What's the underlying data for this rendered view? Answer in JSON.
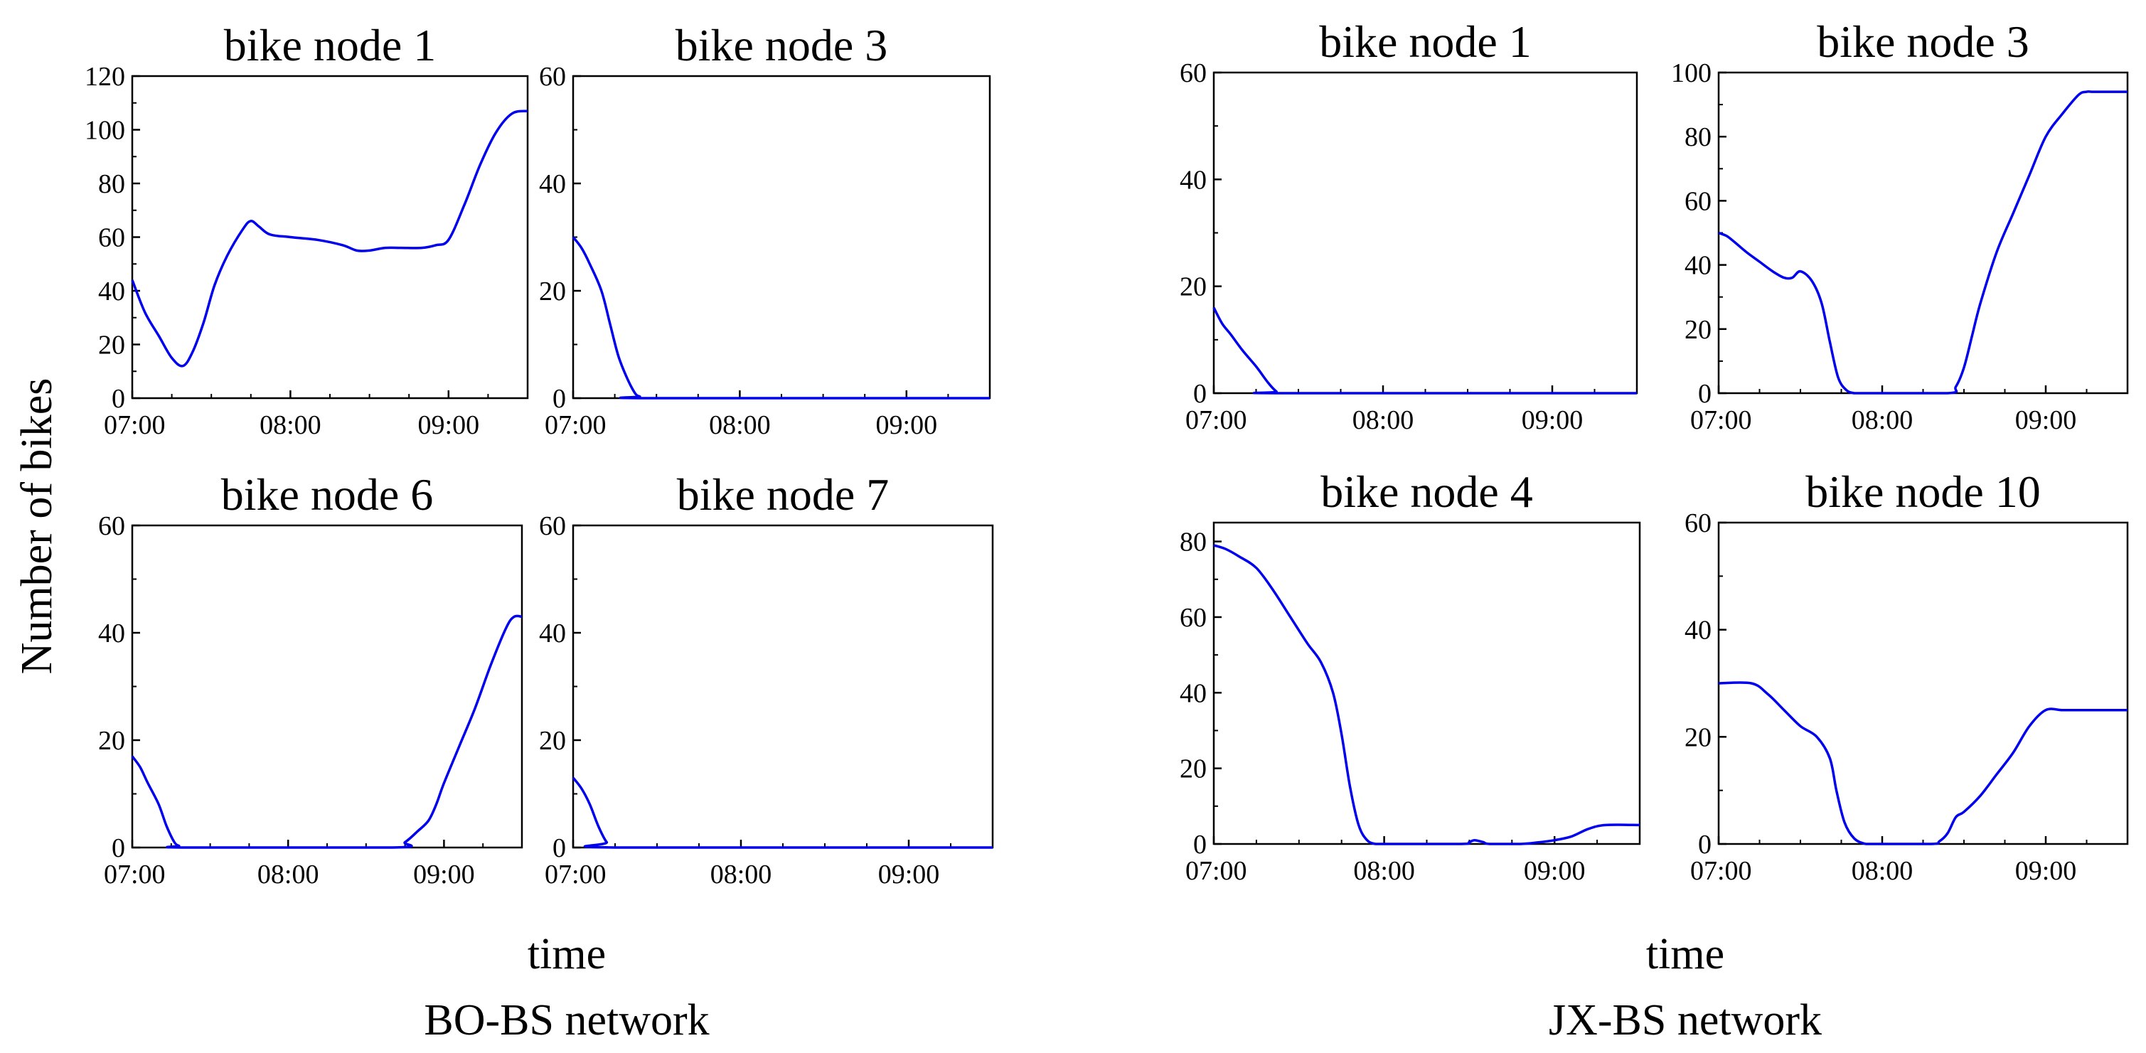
{
  "figure": {
    "ylabel": "Number of bikes",
    "groups": [
      {
        "xlabel": "time",
        "caption": "BO-BS network"
      },
      {
        "xlabel": "time",
        "caption": "JX-BS network"
      }
    ],
    "line_color": "#0000ee"
  },
  "chart_data": [
    {
      "type": "line",
      "network": "BO-BS network",
      "title": "bike node 1",
      "xlabel": "time",
      "ylabel": "Number of bikes",
      "x_unit": "hours",
      "xlim": [
        7.0,
        9.5
      ],
      "ylim": [
        0,
        120
      ],
      "xticks": [
        7,
        8,
        9
      ],
      "xtick_labels": [
        "07:00",
        "08:00",
        "09:00"
      ],
      "yticks": [
        0,
        20,
        40,
        60,
        80,
        100,
        120
      ],
      "series": [
        {
          "color": "#0000ee",
          "x": [
            7.0,
            7.08,
            7.17,
            7.25,
            7.32,
            7.38,
            7.45,
            7.52,
            7.6,
            7.7,
            7.75,
            7.8,
            7.87,
            8.0,
            8.17,
            8.33,
            8.42,
            8.5,
            8.6,
            8.7,
            8.83,
            8.92,
            9.0,
            9.1,
            9.2,
            9.3,
            9.4,
            9.5
          ],
          "y": [
            44,
            32,
            23,
            15,
            12,
            17,
            28,
            42,
            53,
            63,
            66,
            64,
            61,
            60,
            59,
            57,
            55,
            55,
            56,
            56,
            56,
            57,
            59,
            72,
            87,
            99,
            106,
            107
          ]
        }
      ]
    },
    {
      "type": "line",
      "network": "BO-BS network",
      "title": "bike node 3",
      "xlabel": "time",
      "ylabel": "Number of bikes",
      "x_unit": "hours",
      "xlim": [
        7.0,
        9.5
      ],
      "ylim": [
        0,
        60
      ],
      "xticks": [
        7,
        8,
        9
      ],
      "xtick_labels": [
        "07:00",
        "08:00",
        "09:00"
      ],
      "yticks": [
        0,
        20,
        40,
        60
      ],
      "series": [
        {
          "color": "#0000ee",
          "x": [
            7.0,
            7.05,
            7.1,
            7.17,
            7.22,
            7.27,
            7.32,
            7.37,
            7.4,
            7.45,
            9.5
          ],
          "y": [
            30,
            28,
            25,
            20,
            14,
            8,
            4,
            1,
            0.3,
            0,
            0
          ]
        }
      ]
    },
    {
      "type": "line",
      "network": "BO-BS network",
      "title": "bike node 6",
      "xlabel": "time",
      "ylabel": "Number of bikes",
      "x_unit": "hours",
      "xlim": [
        7.0,
        9.5
      ],
      "ylim": [
        0,
        60
      ],
      "xticks": [
        7,
        8,
        9
      ],
      "xtick_labels": [
        "07:00",
        "08:00",
        "09:00"
      ],
      "yticks": [
        0,
        20,
        40,
        60
      ],
      "series": [
        {
          "color": "#0000ee",
          "x": [
            7.0,
            7.05,
            7.1,
            7.17,
            7.22,
            7.27,
            7.3,
            7.33,
            8.67,
            8.75,
            8.83,
            8.9,
            8.95,
            9.0,
            9.1,
            9.2,
            9.3,
            9.4,
            9.45,
            9.5
          ],
          "y": [
            17,
            15,
            12,
            8,
            4,
            1,
            0.3,
            0,
            0,
            1,
            3,
            5,
            8,
            12,
            19,
            26,
            34,
            41,
            43,
            43
          ]
        }
      ]
    },
    {
      "type": "line",
      "network": "BO-BS network",
      "title": "bike node 7",
      "xlabel": "time",
      "ylabel": "Number of bikes",
      "x_unit": "hours",
      "xlim": [
        7.0,
        9.5
      ],
      "ylim": [
        0,
        60
      ],
      "xticks": [
        7,
        8,
        9
      ],
      "xtick_labels": [
        "07:00",
        "08:00",
        "09:00"
      ],
      "yticks": [
        0,
        20,
        40,
        60
      ],
      "series": [
        {
          "color": "#0000ee",
          "x": [
            7.0,
            7.05,
            7.1,
            7.15,
            7.2,
            7.25,
            9.5
          ],
          "y": [
            13,
            11,
            8,
            4,
            1,
            0,
            0
          ]
        }
      ]
    },
    {
      "type": "line",
      "network": "JX-BS network",
      "title": "bike node 1",
      "xlabel": "time",
      "ylabel": "Number of bikes",
      "x_unit": "hours",
      "xlim": [
        7.0,
        9.5
      ],
      "ylim": [
        0,
        60
      ],
      "xticks": [
        7,
        8,
        9
      ],
      "xtick_labels": [
        "07:00",
        "08:00",
        "09:00"
      ],
      "yticks": [
        0,
        20,
        40,
        60
      ],
      "series": [
        {
          "color": "#0000ee",
          "x": [
            7.0,
            7.05,
            7.1,
            7.17,
            7.25,
            7.32,
            7.37,
            7.4,
            9.5
          ],
          "y": [
            16,
            13,
            11,
            8,
            5,
            2,
            0.3,
            0,
            0
          ]
        }
      ]
    },
    {
      "type": "line",
      "network": "JX-BS network",
      "title": "bike node 3",
      "xlabel": "time",
      "ylabel": "Number of bikes",
      "x_unit": "hours",
      "xlim": [
        7.0,
        9.5
      ],
      "ylim": [
        0,
        100
      ],
      "xticks": [
        7,
        8,
        9
      ],
      "xtick_labels": [
        "07:00",
        "08:00",
        "09:00"
      ],
      "yticks": [
        0,
        20,
        40,
        60,
        80,
        100
      ],
      "series": [
        {
          "color": "#0000ee",
          "x": [
            7.0,
            7.05,
            7.1,
            7.17,
            7.25,
            7.33,
            7.4,
            7.45,
            7.5,
            7.57,
            7.63,
            7.68,
            7.73,
            7.78,
            7.83,
            7.88,
            8.4,
            8.45,
            8.5,
            8.55,
            8.6,
            8.7,
            8.8,
            8.9,
            9.0,
            9.1,
            9.2,
            9.25,
            9.3,
            9.5
          ],
          "y": [
            50,
            49,
            47,
            44,
            41,
            38,
            36,
            36,
            38,
            35,
            28,
            16,
            5,
            1,
            0,
            0,
            0,
            2,
            8,
            18,
            28,
            44,
            56,
            68,
            80,
            87,
            93,
            94,
            94,
            94
          ]
        }
      ]
    },
    {
      "type": "line",
      "network": "JX-BS network",
      "title": "bike node 4",
      "xlabel": "time",
      "ylabel": "Number of bikes",
      "x_unit": "hours",
      "xlim": [
        7.0,
        9.5
      ],
      "ylim": [
        0,
        85
      ],
      "xticks": [
        7,
        8,
        9
      ],
      "xtick_labels": [
        "07:00",
        "08:00",
        "09:00"
      ],
      "yticks": [
        0,
        20,
        40,
        60,
        80
      ],
      "series": [
        {
          "color": "#0000ee",
          "x": [
            7.0,
            7.07,
            7.15,
            7.25,
            7.35,
            7.45,
            7.55,
            7.63,
            7.7,
            7.75,
            7.8,
            7.85,
            7.9,
            7.95,
            8.0,
            8.45,
            8.5,
            8.53,
            8.58,
            8.62,
            8.8,
            8.9,
            9.0,
            9.1,
            9.2,
            9.3,
            9.5
          ],
          "y": [
            79,
            78,
            76,
            73,
            67,
            60,
            53,
            48,
            40,
            29,
            15,
            5,
            1,
            0,
            0,
            0,
            0.5,
            1,
            0.5,
            0,
            0,
            0.4,
            1,
            2,
            4,
            5,
            5
          ]
        }
      ]
    },
    {
      "type": "line",
      "network": "JX-BS network",
      "title": "bike node 10",
      "xlabel": "time",
      "ylabel": "Number of bikes",
      "x_unit": "hours",
      "xlim": [
        7.0,
        9.5
      ],
      "ylim": [
        0,
        60
      ],
      "xticks": [
        7,
        8,
        9
      ],
      "xtick_labels": [
        "07:00",
        "08:00",
        "09:00"
      ],
      "yticks": [
        0,
        20,
        40,
        60
      ],
      "series": [
        {
          "color": "#0000ee",
          "x": [
            7.0,
            7.2,
            7.3,
            7.4,
            7.5,
            7.6,
            7.68,
            7.72,
            7.77,
            7.83,
            7.9,
            7.95,
            8.3,
            8.35,
            8.4,
            8.45,
            8.5,
            8.6,
            8.7,
            8.8,
            8.9,
            9.0,
            9.1,
            9.2,
            9.5
          ],
          "y": [
            30,
            30,
            28,
            25,
            22,
            20,
            16,
            10,
            4,
            1,
            0,
            0,
            0,
            0.5,
            2,
            5,
            6,
            9,
            13,
            17,
            22,
            25,
            25,
            25,
            25
          ]
        }
      ]
    }
  ]
}
